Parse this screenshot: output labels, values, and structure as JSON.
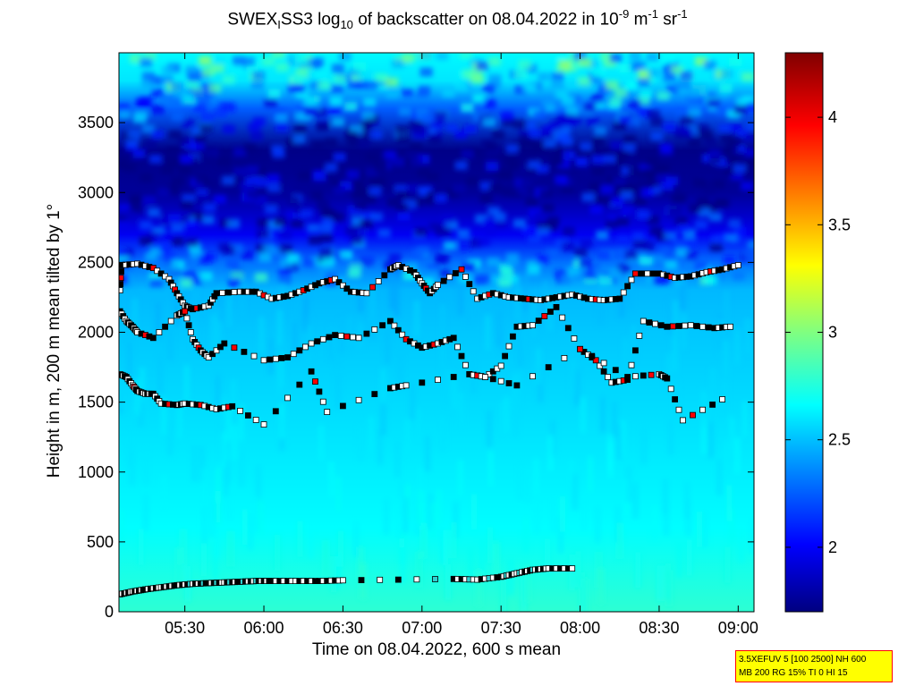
{
  "title": {
    "part1": "SWEX",
    "sub1": "I",
    "part2": "SS3 log",
    "sub2": "10",
    "part3": " of backscatter on 08.04.2022 in 10",
    "sup1": "-9",
    "part4": " m",
    "sup2": "-1",
    "part5": " sr",
    "sup3": "-1"
  },
  "xlabel": "Time on 08.04.2022, 600 s mean",
  "ylabel": "Height in m, 200 m mean tilted by 1°",
  "info": {
    "line1": "3.5XEFUV 5 [100 2500] NH 600",
    "line2": "MB 200 RG 15% TI 0 HI 15"
  },
  "chart_data": {
    "type": "heatmap",
    "xlim_hours": [
      5.0833,
      9.1
    ],
    "ylim": [
      0,
      4000
    ],
    "x_ticks": [
      {
        "value": 5.5,
        "label": "05:30"
      },
      {
        "value": 6.0,
        "label": "06:00"
      },
      {
        "value": 6.5,
        "label": "06:30"
      },
      {
        "value": 7.0,
        "label": "07:00"
      },
      {
        "value": 7.5,
        "label": "07:30"
      },
      {
        "value": 8.0,
        "label": "08:00"
      },
      {
        "value": 8.5,
        "label": "08:30"
      },
      {
        "value": 9.0,
        "label": "09:00"
      }
    ],
    "y_ticks": [
      0,
      500,
      1000,
      1500,
      2000,
      2500,
      3000,
      3500
    ],
    "colorbar": {
      "clim": [
        1.7,
        4.3
      ],
      "ticks": [
        {
          "value": 2,
          "label": "2"
        },
        {
          "value": 2.5,
          "label": "2.5"
        },
        {
          "value": 3,
          "label": "3"
        },
        {
          "value": 3.5,
          "label": "3.5"
        },
        {
          "value": 4,
          "label": "4"
        }
      ]
    },
    "background_profile": [
      {
        "height": 0,
        "value": 2.78
      },
      {
        "height": 200,
        "value": 2.74
      },
      {
        "height": 600,
        "value": 2.66
      },
      {
        "height": 1000,
        "value": 2.62
      },
      {
        "height": 1500,
        "value": 2.57
      },
      {
        "height": 2000,
        "value": 2.52
      },
      {
        "height": 2300,
        "value": 2.48
      },
      {
        "height": 2500,
        "value": 2.3
      },
      {
        "height": 2700,
        "value": 1.98
      },
      {
        "height": 3000,
        "value": 1.76
      },
      {
        "height": 3300,
        "value": 1.72
      },
      {
        "height": 3600,
        "value": 2.25
      },
      {
        "height": 3800,
        "value": 2.6
      },
      {
        "height": 4000,
        "value": 2.65
      }
    ],
    "layers": [
      {
        "name": "surface layer",
        "points": [
          [
            5.09,
            125
          ],
          [
            5.17,
            145
          ],
          [
            5.25,
            160
          ],
          [
            5.35,
            175
          ],
          [
            5.45,
            190
          ],
          [
            5.55,
            200
          ],
          [
            5.65,
            205
          ],
          [
            5.75,
            210
          ],
          [
            5.85,
            215
          ],
          [
            5.95,
            220
          ],
          [
            6.05,
            220
          ],
          [
            6.2,
            220
          ],
          [
            6.35,
            220
          ],
          [
            6.5,
            225
          ],
          [
            7.2,
            235
          ],
          [
            7.35,
            230
          ],
          [
            7.5,
            250
          ],
          [
            7.6,
            275
          ],
          [
            7.7,
            300
          ],
          [
            7.8,
            310
          ],
          [
            7.95,
            310
          ]
        ]
      },
      {
        "name": "layer 1",
        "points": [
          [
            5.09,
            2300
          ],
          [
            5.1,
            2480
          ],
          [
            5.2,
            2490
          ],
          [
            5.3,
            2460
          ],
          [
            5.4,
            2380
          ],
          [
            5.45,
            2280
          ],
          [
            5.5,
            2190
          ],
          [
            5.55,
            2165
          ],
          [
            5.65,
            2190
          ],
          [
            5.7,
            2280
          ],
          [
            5.85,
            2290
          ],
          [
            5.95,
            2290
          ],
          [
            6.05,
            2240
          ],
          [
            6.15,
            2260
          ],
          [
            6.25,
            2300
          ],
          [
            6.35,
            2350
          ],
          [
            6.45,
            2380
          ],
          [
            6.55,
            2290
          ],
          [
            6.65,
            2280
          ],
          [
            6.8,
            2450
          ],
          [
            6.85,
            2480
          ],
          [
            6.95,
            2430
          ],
          [
            7.0,
            2350
          ],
          [
            7.05,
            2280
          ],
          [
            7.1,
            2340
          ],
          [
            7.25,
            2450
          ],
          [
            7.35,
            2240
          ],
          [
            7.45,
            2280
          ],
          [
            7.55,
            2250
          ],
          [
            7.65,
            2240
          ],
          [
            7.75,
            2230
          ],
          [
            7.85,
            2250
          ],
          [
            7.95,
            2270
          ],
          [
            8.05,
            2240
          ],
          [
            8.15,
            2230
          ],
          [
            8.25,
            2240
          ],
          [
            8.35,
            2420
          ],
          [
            8.5,
            2420
          ],
          [
            8.6,
            2390
          ],
          [
            8.7,
            2400
          ],
          [
            8.8,
            2430
          ],
          [
            8.9,
            2450
          ],
          [
            9.0,
            2480
          ]
        ]
      },
      {
        "name": "layer 2",
        "points": [
          [
            5.09,
            2150
          ],
          [
            5.13,
            2080
          ],
          [
            5.17,
            2040
          ],
          [
            5.2,
            2000
          ],
          [
            5.3,
            1960
          ],
          [
            5.45,
            2120
          ],
          [
            5.5,
            2150
          ],
          [
            5.55,
            1950
          ],
          [
            5.6,
            1870
          ],
          [
            5.65,
            1820
          ],
          [
            5.75,
            1920
          ],
          [
            6.0,
            1800
          ],
          [
            6.15,
            1820
          ],
          [
            6.3,
            1920
          ],
          [
            6.45,
            1980
          ],
          [
            6.6,
            1960
          ],
          [
            6.8,
            2080
          ],
          [
            6.9,
            1950
          ],
          [
            7.0,
            1890
          ],
          [
            7.1,
            1920
          ],
          [
            7.2,
            1960
          ],
          [
            7.3,
            1700
          ],
          [
            7.4,
            1680
          ],
          [
            7.5,
            1760
          ],
          [
            7.6,
            2040
          ],
          [
            7.7,
            2050
          ],
          [
            7.85,
            2180
          ],
          [
            8.0,
            1880
          ],
          [
            8.1,
            1800
          ],
          [
            8.2,
            1640
          ],
          [
            8.3,
            1660
          ],
          [
            8.4,
            2080
          ],
          [
            8.55,
            2040
          ],
          [
            8.7,
            2050
          ],
          [
            8.85,
            2030
          ],
          [
            8.95,
            2040
          ]
        ]
      },
      {
        "name": "layer 3",
        "points": [
          [
            5.09,
            1700
          ],
          [
            5.13,
            1680
          ],
          [
            5.17,
            1620
          ],
          [
            5.2,
            1580
          ],
          [
            5.25,
            1560
          ],
          [
            5.3,
            1560
          ],
          [
            5.35,
            1490
          ],
          [
            5.45,
            1480
          ],
          [
            5.5,
            1490
          ],
          [
            5.6,
            1480
          ],
          [
            5.7,
            1450
          ],
          [
            5.8,
            1470
          ],
          [
            6.0,
            1340
          ],
          [
            6.3,
            1720
          ],
          [
            6.4,
            1430
          ],
          [
            6.8,
            1600
          ],
          [
            6.9,
            1620
          ],
          [
            7.3,
            1700
          ],
          [
            7.4,
            1680
          ],
          [
            7.6,
            1620
          ],
          [
            8.0,
            1880
          ],
          [
            8.3,
            1680
          ],
          [
            8.5,
            1700
          ],
          [
            8.55,
            1670
          ],
          [
            8.65,
            1370
          ],
          [
            8.9,
            1520
          ]
        ]
      }
    ]
  }
}
